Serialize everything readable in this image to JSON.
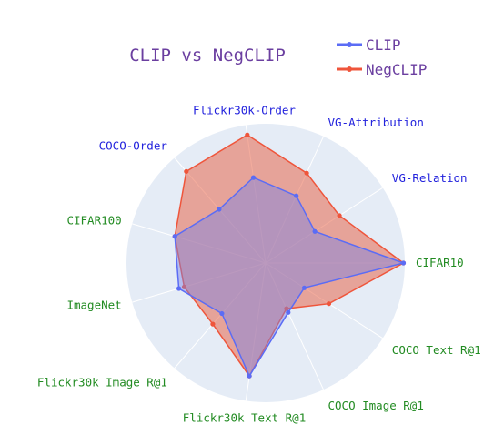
{
  "chart_data": {
    "type": "radar",
    "title": "CLIP vs NegCLIP",
    "legend_position": "top-right",
    "grid": true,
    "range": [
      0,
      1
    ],
    "axes": [
      {
        "label": "CIFAR10",
        "color": "#228B22"
      },
      {
        "label": "VG-Relation",
        "color": "#2222dd"
      },
      {
        "label": "VG-Attribution",
        "color": "#2222dd"
      },
      {
        "label": "Flickr30k-Order",
        "color": "#2222dd"
      },
      {
        "label": "COCO-Order",
        "color": "#2222dd"
      },
      {
        "label": "CIFAR100",
        "color": "#228B22"
      },
      {
        "label": "ImageNet",
        "color": "#228B22"
      },
      {
        "label": "Flickr30k Image R@1",
        "color": "#228B22"
      },
      {
        "label": "Flickr30k Text R@1",
        "color": "#228B22"
      },
      {
        "label": "COCO Image R@1",
        "color": "#228B22"
      },
      {
        "label": "COCO Text R@1",
        "color": "#228B22"
      }
    ],
    "series": [
      {
        "name": "CLIP",
        "color": "#5b6cf5",
        "fill": "rgba(120,130,230,0.45)",
        "values": [
          0.99,
          0.42,
          0.53,
          0.62,
          0.51,
          0.68,
          0.65,
          0.48,
          0.82,
          0.39,
          0.33
        ]
      },
      {
        "name": "NegCLIP",
        "color": "#ef553b",
        "fill": "rgba(232,90,60,0.5)",
        "values": [
          0.99,
          0.63,
          0.71,
          0.93,
          0.87,
          0.68,
          0.61,
          0.58,
          0.82,
          0.36,
          0.54
        ]
      }
    ]
  }
}
